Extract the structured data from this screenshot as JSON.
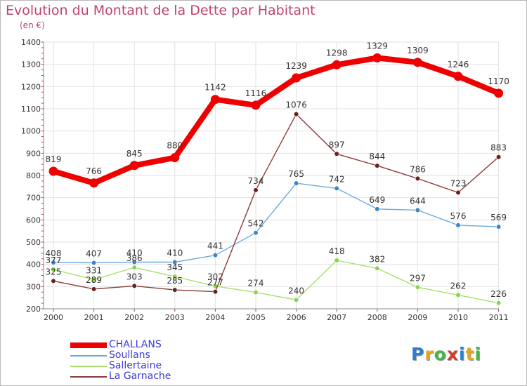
{
  "title": "Evolution du Montant de la Dette par Habitant",
  "subtitle": "(en €)",
  "logo": {
    "text": "Proxiti",
    "colors": [
      "#2a7fd0",
      "#e8a320",
      "#4bb34b",
      "#d63b2a",
      "#2a7fd0",
      "#e8a320",
      "#4bb34b"
    ]
  },
  "chart_data": {
    "type": "line",
    "title": "Evolution du Montant de la Dette par Habitant",
    "ylabel": "(en €)",
    "x": [
      "2000",
      "2001",
      "2002",
      "2003",
      "2004",
      "2005",
      "2006",
      "2007",
      "2008",
      "2009",
      "2010",
      "2011"
    ],
    "ylim": [
      200,
      1400
    ],
    "yticks": [
      200,
      300,
      400,
      500,
      600,
      700,
      800,
      900,
      1000,
      1100,
      1200,
      1300,
      1400
    ],
    "grid": true,
    "legend_position": "bottom-left",
    "series": [
      {
        "name": "CHALLANS",
        "color": "#ee0000",
        "thick": true,
        "values": [
          819,
          766,
          845,
          880,
          1142,
          1116,
          1239,
          1298,
          1329,
          1309,
          1246,
          1170
        ]
      },
      {
        "name": "Soullans",
        "color": "#6fa8dc",
        "point_color": "#3d85c6",
        "thick": false,
        "values": [
          408,
          407,
          410,
          410,
          441,
          542,
          765,
          742,
          649,
          644,
          576,
          569
        ]
      },
      {
        "name": "Sallertaine",
        "color": "#a8e06a",
        "point_color": "#8bd34d",
        "thick": false,
        "values": [
          377,
          331,
          386,
          345,
          302,
          274,
          240,
          418,
          382,
          297,
          262,
          226
        ]
      },
      {
        "name": "La Garnache",
        "color": "#8b3a3a",
        "point_color": "#6b1f1f",
        "thick": false,
        "values": [
          325,
          289,
          303,
          285,
          277,
          null,
          1076,
          897,
          844,
          786,
          723,
          883
        ]
      }
    ],
    "garnache_extra_point": {
      "x": "2005",
      "value": 734
    }
  }
}
